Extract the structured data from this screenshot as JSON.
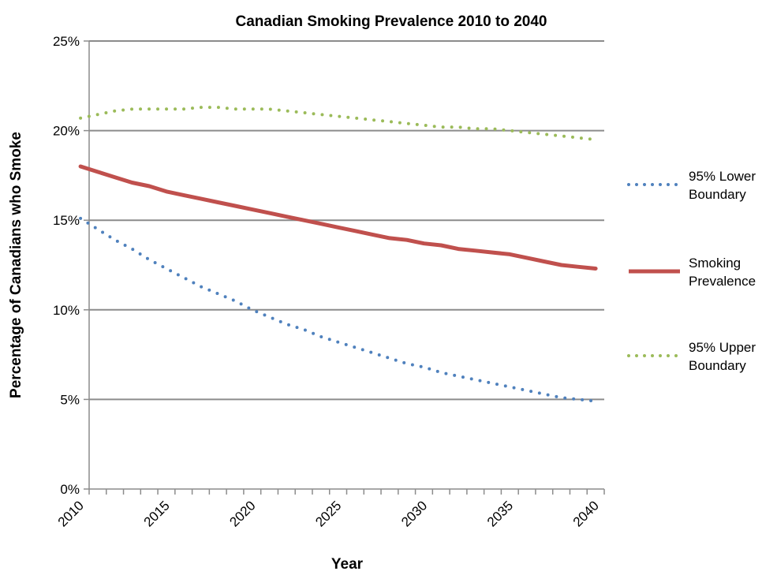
{
  "chart_data": {
    "type": "line",
    "title": "Canadian Smoking Prevalence 2010 to 2040",
    "xlabel": "Year",
    "ylabel": "Percentage of Canadians who Smoke",
    "xlim": [
      2010,
      2040
    ],
    "ylim": [
      0,
      25
    ],
    "x_ticks": [
      "2010",
      "2015",
      "2020",
      "2025",
      "2030",
      "2035",
      "2040"
    ],
    "y_ticks": [
      "0%",
      "5%",
      "10%",
      "15%",
      "20%",
      "25%"
    ],
    "grid": "horizontal",
    "legend_position": "right",
    "x": [
      2010,
      2011,
      2012,
      2013,
      2014,
      2015,
      2016,
      2017,
      2018,
      2019,
      2020,
      2021,
      2022,
      2023,
      2024,
      2025,
      2026,
      2027,
      2028,
      2029,
      2030,
      2031,
      2032,
      2033,
      2034,
      2035,
      2036,
      2037,
      2038,
      2039,
      2040
    ],
    "series": [
      {
        "name": "95% Lower Boundary",
        "color": "#4f81bd",
        "style": "dotted",
        "values": [
          15.1,
          14.5,
          13.9,
          13.4,
          12.8,
          12.3,
          11.8,
          11.3,
          10.9,
          10.5,
          10.0,
          9.6,
          9.2,
          8.9,
          8.5,
          8.2,
          7.9,
          7.6,
          7.3,
          7.0,
          6.8,
          6.5,
          6.3,
          6.1,
          5.9,
          5.7,
          5.5,
          5.3,
          5.1,
          5.0,
          4.9
        ]
      },
      {
        "name": "Smoking Prevalence",
        "color": "#c0504d",
        "style": "solid",
        "values": [
          18.0,
          17.7,
          17.4,
          17.1,
          16.9,
          16.6,
          16.4,
          16.2,
          16.0,
          15.8,
          15.6,
          15.4,
          15.2,
          15.0,
          14.8,
          14.6,
          14.4,
          14.2,
          14.0,
          13.9,
          13.7,
          13.6,
          13.4,
          13.3,
          13.2,
          13.1,
          12.9,
          12.7,
          12.5,
          12.4,
          12.3
        ]
      },
      {
        "name": "95% Upper Boundary",
        "color": "#9bbb59",
        "style": "dotted",
        "values": [
          20.7,
          20.9,
          21.1,
          21.2,
          21.2,
          21.2,
          21.2,
          21.3,
          21.3,
          21.2,
          21.2,
          21.2,
          21.1,
          21.0,
          20.9,
          20.8,
          20.7,
          20.6,
          20.5,
          20.4,
          20.3,
          20.2,
          20.2,
          20.1,
          20.1,
          20.0,
          19.9,
          19.8,
          19.7,
          19.6,
          19.5
        ]
      }
    ]
  }
}
